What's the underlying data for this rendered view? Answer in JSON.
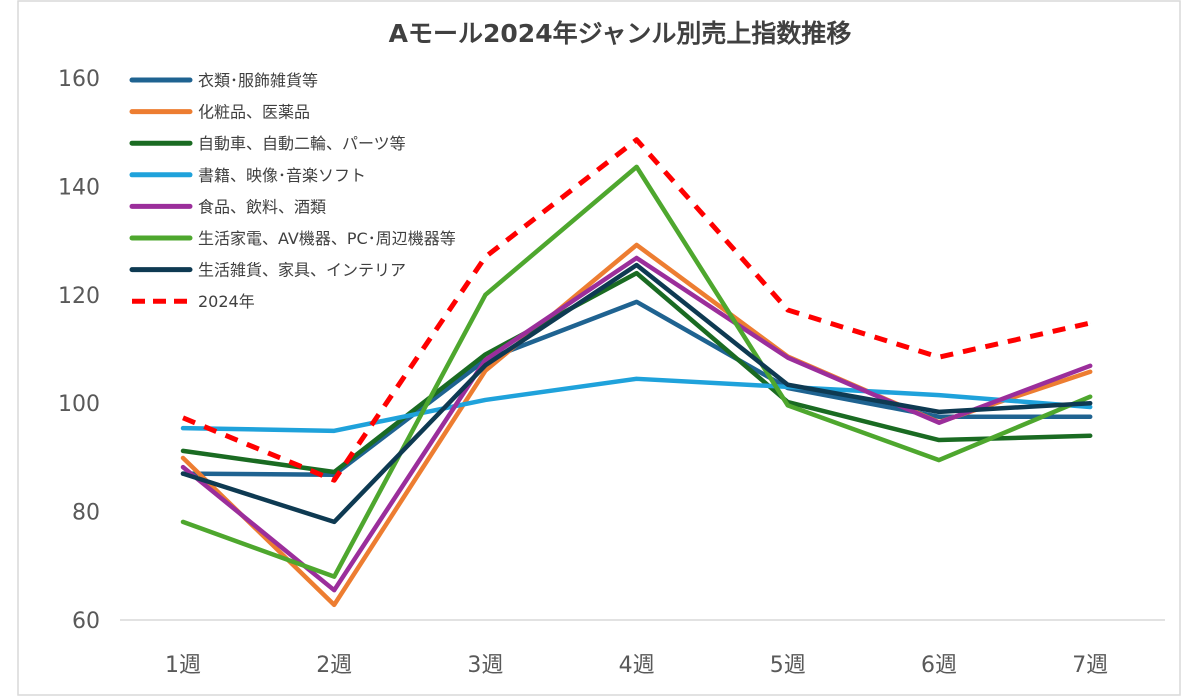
{
  "chart_data": {
    "type": "line",
    "title": "Aモール2024年ジャンル別売上指数推移",
    "xlabel": "",
    "ylabel": "",
    "categories": [
      "1週",
      "2週",
      "3週",
      "4週",
      "5週",
      "6週",
      "7週"
    ],
    "ylim": [
      60,
      160
    ],
    "yticks": [
      60,
      80,
      100,
      120,
      140,
      160
    ],
    "grid": false,
    "legend": "top-left",
    "series": [
      {
        "name": "衣類･服飾雑貨等",
        "color": "#1F6391",
        "dash": false,
        "values": [
          87,
          86.8,
          108,
          118.7,
          102.8,
          97.5,
          97.5
        ]
      },
      {
        "name": "化粧品、医薬品",
        "color": "#ED7D31",
        "dash": false,
        "values": [
          89.9,
          62.8,
          106,
          129.2,
          108.6,
          96.5,
          105.8
        ]
      },
      {
        "name": "自動車、自動二輪、パーツ等",
        "color": "#1A6B22",
        "dash": false,
        "values": [
          91.2,
          87.3,
          109,
          124,
          100.2,
          93.2,
          94
        ]
      },
      {
        "name": "書籍、映像･音楽ソフト",
        "color": "#1FA2DB",
        "dash": false,
        "values": [
          95.4,
          94.9,
          100.6,
          104.5,
          103,
          101.5,
          99.3
        ]
      },
      {
        "name": "食品、飲料、酒類",
        "color": "#9B2E9B",
        "dash": false,
        "values": [
          88.2,
          65.5,
          108,
          126.8,
          108.4,
          96.4,
          106.9
        ]
      },
      {
        "name": "生活家電、AV機器、PC･周辺機器等",
        "color": "#4EA72E",
        "dash": false,
        "values": [
          78.1,
          68,
          120,
          143.6,
          99.6,
          89.5,
          101.2
        ]
      },
      {
        "name": "生活雑貨、家具、インテリア",
        "color": "#0E3A52",
        "dash": false,
        "values": [
          87,
          78.1,
          107,
          125.5,
          103.4,
          98.4,
          100
        ]
      },
      {
        "name": "2024年",
        "color": "#FF0000",
        "dash": true,
        "values": [
          97.3,
          85.8,
          127,
          148.6,
          117.2,
          108.5,
          114.8
        ]
      }
    ]
  }
}
